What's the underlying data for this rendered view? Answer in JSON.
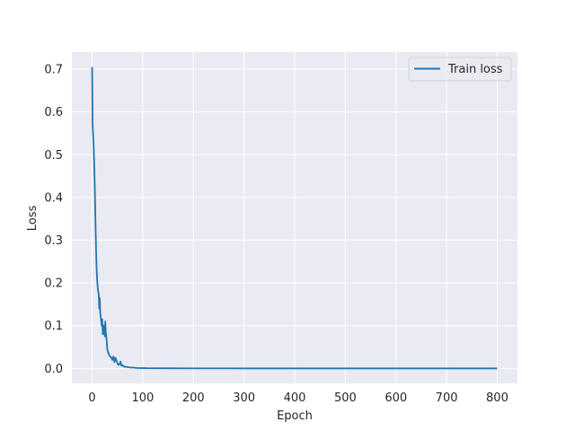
{
  "chart_data": {
    "type": "line",
    "title": "",
    "xlabel": "Epoch",
    "ylabel": "Loss",
    "xlim": [
      -40,
      840
    ],
    "ylim": [
      -0.035,
      0.74
    ],
    "xticks": [
      0,
      100,
      200,
      300,
      400,
      500,
      600,
      700,
      800
    ],
    "xtick_labels": [
      "0",
      "100",
      "200",
      "300",
      "400",
      "500",
      "600",
      "700",
      "800"
    ],
    "yticks": [
      0.0,
      0.1,
      0.2,
      0.3,
      0.4,
      0.5,
      0.6,
      0.7
    ],
    "ytick_labels": [
      "0.0",
      "0.1",
      "0.2",
      "0.3",
      "0.4",
      "0.5",
      "0.6",
      "0.7"
    ],
    "grid": true,
    "legend_position": "top-right",
    "style": "seaborn-darkgrid",
    "colors": {
      "background": "#eaeaf2",
      "grid": "#ffffff",
      "series": "#1f77b4"
    },
    "series": [
      {
        "name": "Train loss",
        "x": [
          0,
          1,
          2,
          3,
          4,
          5,
          6,
          7,
          8,
          9,
          10,
          11,
          12,
          13,
          14,
          15,
          16,
          17,
          18,
          19,
          20,
          21,
          22,
          23,
          24,
          25,
          26,
          27,
          28,
          29,
          30,
          31,
          32,
          33,
          34,
          36,
          38,
          40,
          42,
          44,
          46,
          48,
          50,
          52,
          54,
          56,
          58,
          60,
          62,
          64,
          66,
          70,
          75,
          80,
          85,
          90,
          100,
          110,
          120,
          150,
          200,
          300,
          400,
          500,
          600,
          700,
          800
        ],
        "y": [
          0.705,
          0.57,
          0.545,
          0.52,
          0.48,
          0.44,
          0.38,
          0.32,
          0.27,
          0.23,
          0.205,
          0.19,
          0.18,
          0.175,
          0.14,
          0.165,
          0.13,
          0.12,
          0.11,
          0.1,
          0.115,
          0.08,
          0.085,
          0.1,
          0.09,
          0.075,
          0.11,
          0.085,
          0.075,
          0.06,
          0.045,
          0.04,
          0.035,
          0.035,
          0.03,
          0.028,
          0.025,
          0.02,
          0.028,
          0.015,
          0.025,
          0.018,
          0.012,
          0.008,
          0.01,
          0.016,
          0.006,
          0.008,
          0.005,
          0.004,
          0.004,
          0.003,
          0.002,
          0.002,
          0.0015,
          0.001,
          0.0008,
          0.0005,
          0.0004,
          0.0003,
          0.0002,
          0.0001,
          0.0001,
          0.0001,
          0.0001,
          0.0001,
          0.0001
        ]
      }
    ]
  }
}
